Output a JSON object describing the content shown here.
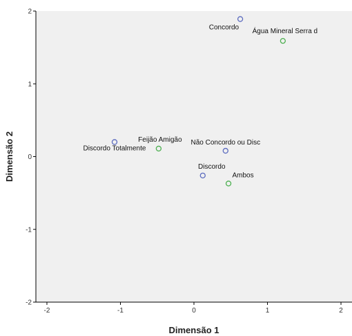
{
  "chart_data": {
    "type": "scatter",
    "title": "",
    "xlabel": "Dimensão 1",
    "ylabel": "Dimensão 2",
    "xlim": [
      -2.15,
      2.15
    ],
    "ylim": [
      -2,
      2
    ],
    "xticks": [
      -2,
      -1,
      0,
      1,
      2
    ],
    "yticks": [
      -2,
      -1,
      0,
      1,
      2
    ],
    "grid": false,
    "background": "#f0f0f0",
    "series": [
      {
        "color": "#5b6bbf",
        "points": [
          {
            "label": "Concordo",
            "x": 0.63,
            "y": 1.89
          },
          {
            "label": "Discordo Totalmente",
            "x": -1.08,
            "y": 0.2
          },
          {
            "label": "Não Concordo ou Disc",
            "x": 0.43,
            "y": 0.08
          },
          {
            "label": "Discordo",
            "x": 0.12,
            "y": -0.26
          }
        ]
      },
      {
        "color": "#4caf50",
        "points": [
          {
            "label": "Água Mineral Serra d",
            "x": 1.21,
            "y": 1.59
          },
          {
            "label": "Feijão Amigão",
            "x": -0.48,
            "y": 0.11
          },
          {
            "label": "Ambos",
            "x": 0.47,
            "y": -0.37
          }
        ]
      }
    ]
  }
}
